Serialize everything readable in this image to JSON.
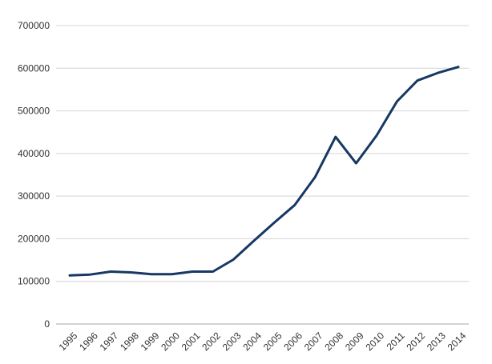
{
  "chart_data": {
    "type": "line",
    "title": "",
    "xlabel": "",
    "ylabel": "",
    "x": [
      "1995",
      "1996",
      "1997",
      "1998",
      "1999",
      "2000",
      "2001",
      "2002",
      "2003",
      "2004",
      "2005",
      "2006",
      "2007",
      "2008",
      "2009",
      "2010",
      "2011",
      "2012",
      "2013",
      "2014"
    ],
    "series": [
      {
        "values": [
          114000,
          116000,
          123000,
          121000,
          117000,
          117000,
          123000,
          123000,
          151000,
          195000,
          238000,
          279000,
          345000,
          439000,
          377000,
          442000,
          522000,
          571000,
          589000,
          603000
        ]
      }
    ],
    "ylim": [
      0,
      700000
    ],
    "yticks": [
      0,
      100000,
      200000,
      300000,
      400000,
      500000,
      600000,
      700000
    ],
    "grid": true,
    "legend": "none"
  },
  "colors": {
    "line": "#163863",
    "grid": "#d4d4d4",
    "text": "#333333"
  }
}
